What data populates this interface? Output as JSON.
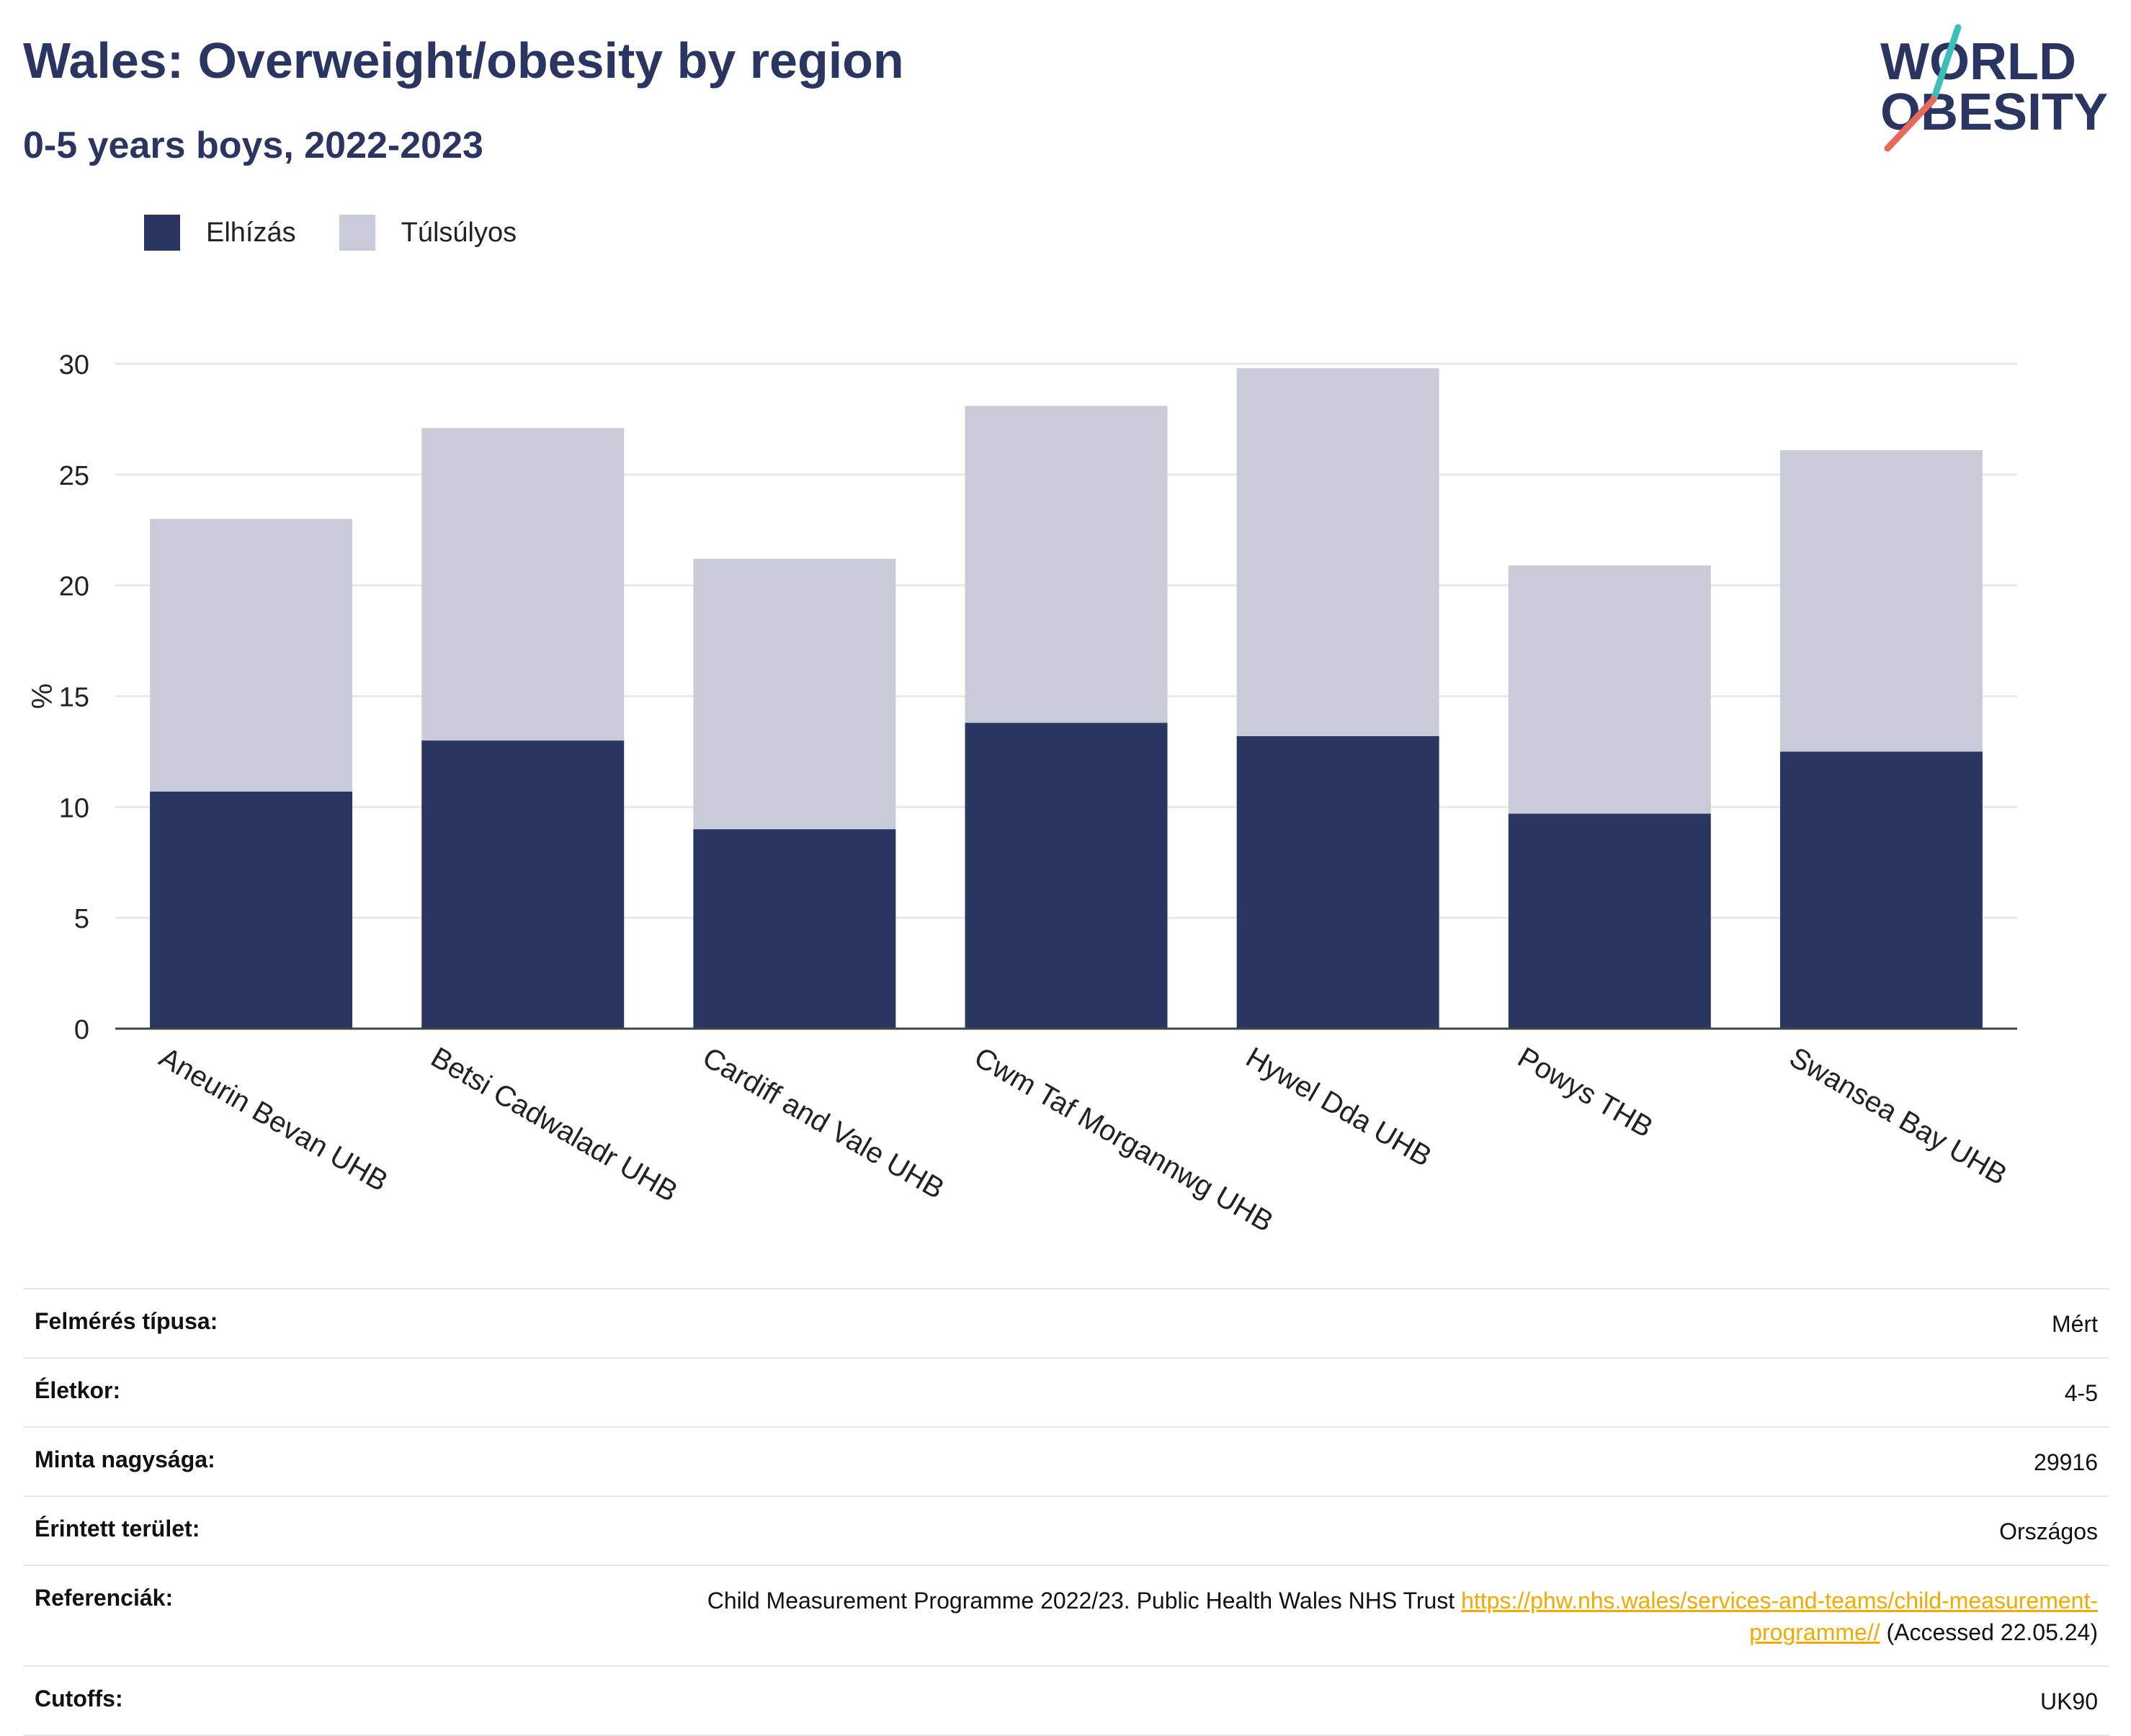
{
  "header": {
    "title": "Wales: Overweight/obesity by region",
    "subtitle": "0-5 years boys, 2022-2023"
  },
  "logo": {
    "line1": "WORLD",
    "line2": "OBESITY",
    "colors": {
      "text": "#2a3561",
      "accent_teal": "#3dbfb8",
      "accent_coral": "#e8685a"
    }
  },
  "chart_data": {
    "type": "bar",
    "stacked": true,
    "categories": [
      "Aneurin Bevan UHB",
      "Betsi Cadwaladr UHB",
      "Cardiff and Vale UHB",
      "Cwm Taf Morgannwg UHB",
      "Hywel Dda UHB",
      "Powys THB",
      "Swansea Bay UHB"
    ],
    "series": [
      {
        "name": "Elhízás",
        "color": "#2a3561",
        "values": [
          10.7,
          13.0,
          9.0,
          13.8,
          13.2,
          9.7,
          12.5
        ]
      },
      {
        "name": "Túlsúlyos",
        "color": "#cacbd8",
        "values": [
          12.3,
          14.1,
          12.2,
          14.3,
          16.6,
          11.2,
          13.6
        ]
      }
    ],
    "ylabel": "%",
    "xlabel": "",
    "ylim": [
      0,
      30
    ],
    "yticks": [
      0,
      5,
      10,
      15,
      20,
      25,
      30
    ],
    "grid": true,
    "legend_position": "top-left"
  },
  "meta": {
    "rows": [
      {
        "key": "Felmérés típusa:",
        "value": "Mért"
      },
      {
        "key": "Életkor:",
        "value": "4-5"
      },
      {
        "key": "Minta nagysága:",
        "value": "29916"
      },
      {
        "key": "Érintett terület:",
        "value": "Országos"
      }
    ],
    "reference": {
      "key": "Referenciák:",
      "text": "Child Measurement Programme 2022/23. Public Health Wales NHS Trust",
      "link": "https://phw.nhs.wales/services-and-teams/child-measurement-programme//",
      "suffix": "(Accessed 22.05.24)"
    },
    "cutoffs": {
      "key": "Cutoffs:",
      "value": "UK90"
    }
  }
}
